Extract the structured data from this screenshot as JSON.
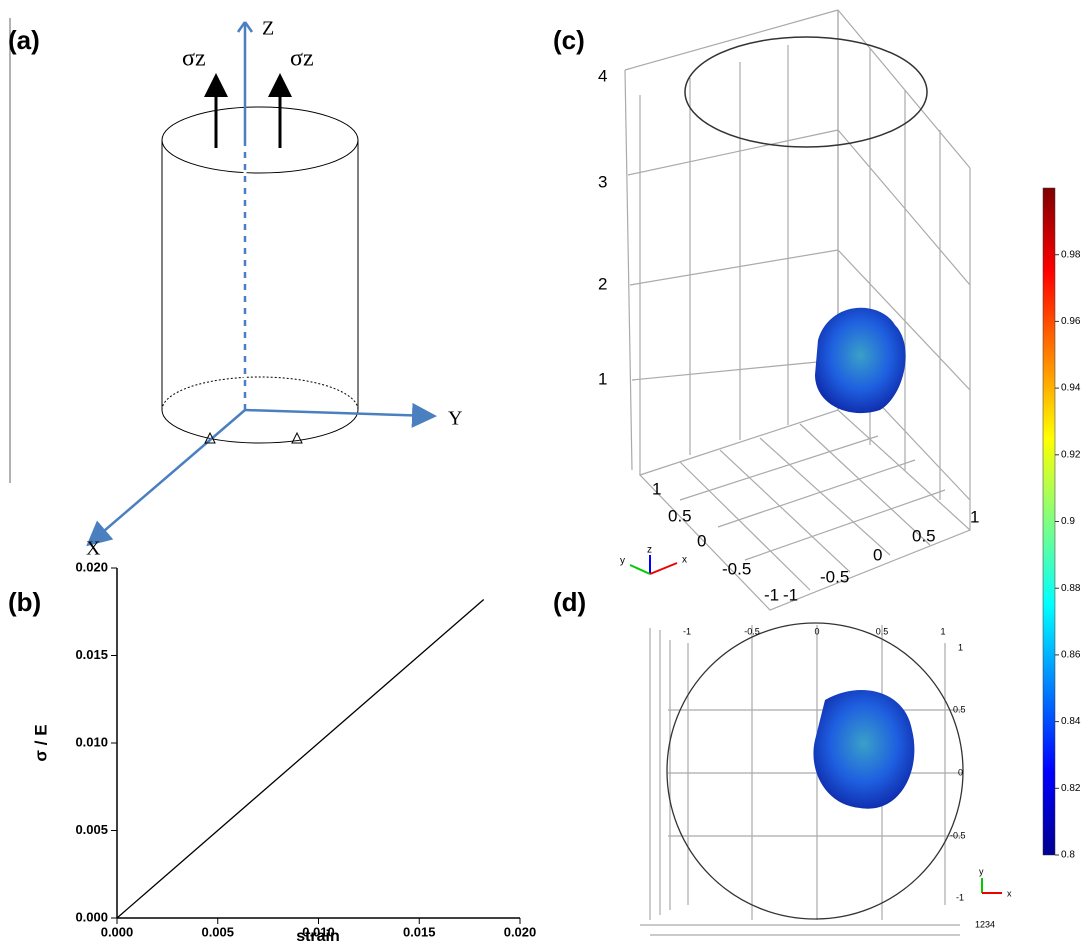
{
  "panel_a": {
    "label": "(a)",
    "z_axis": "Z",
    "y_axis": "Y",
    "x_axis": "X",
    "stress_left": "σz",
    "stress_right": "σz"
  },
  "chart_data": {
    "type": "line",
    "label": "(b)",
    "x_label": "strain",
    "y_label": "σ / E",
    "x": [
      0,
      0.0182
    ],
    "series": [
      {
        "color": "#000000",
        "values": [
          0,
          0.0182
        ]
      }
    ],
    "xlim": [
      0,
      0.02
    ],
    "ylim": [
      0,
      0.02
    ],
    "xticks": [
      {
        "value": 0,
        "label": "0.000"
      },
      {
        "value": 0.005,
        "label": "0.005"
      },
      {
        "value": 0.01,
        "label": "0.010"
      },
      {
        "value": 0.015,
        "label": "0.015"
      },
      {
        "value": 0.02,
        "label": "0.020"
      }
    ],
    "yticks": [
      {
        "value": 0,
        "label": "0.000"
      },
      {
        "value": 0.005,
        "label": "0.005"
      },
      {
        "value": 0.01,
        "label": "0.010"
      },
      {
        "value": 0.015,
        "label": "0.015"
      },
      {
        "value": 0.02,
        "label": "0.020"
      }
    ]
  },
  "panel_c": {
    "label": "(c)",
    "z_ticks": [
      "4",
      "3",
      "2",
      "1"
    ],
    "y_ticks": [
      "1",
      "0.5",
      "0",
      "-0.5",
      "-1"
    ],
    "x_ticks": [
      "-1",
      "-0.5",
      "0",
      "0.5",
      "1"
    ],
    "axes": [
      "z",
      "y",
      "x"
    ]
  },
  "panel_d": {
    "label": "(d)",
    "top_ticks": [
      "-1",
      "-0.5",
      "0",
      "0.5",
      "1"
    ],
    "right_ticks": [
      "1",
      "0.5",
      "0",
      "-0.5",
      "-1"
    ],
    "axes": [
      "y",
      "x"
    ],
    "depth_ticks": "1234"
  },
  "colorbar": {
    "range": [
      0.8,
      1.0
    ],
    "ticks": [
      0.98,
      0.96,
      0.94,
      0.92,
      0.9,
      0.88,
      0.86,
      0.84,
      0.82,
      0.8
    ]
  }
}
